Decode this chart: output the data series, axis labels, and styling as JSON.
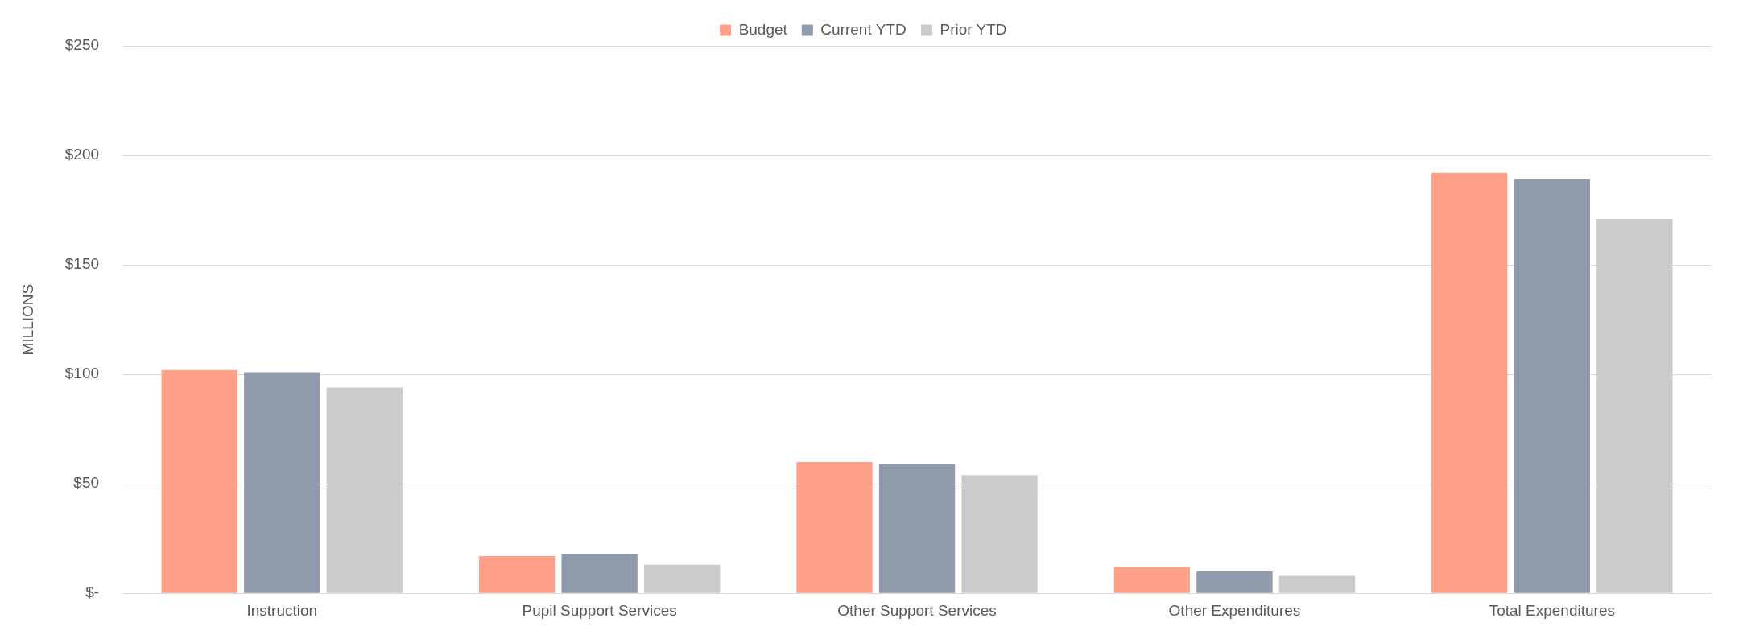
{
  "chart_data": {
    "type": "bar",
    "ylabel": "MILLIONS",
    "categories": [
      "Instruction",
      "Pupil Support Services",
      "Other Support Services",
      "Other Expenditures",
      "Total Expenditures"
    ],
    "series": [
      {
        "name": "Budget",
        "color": "#ffa088",
        "values": [
          102,
          17,
          60,
          12,
          192
        ]
      },
      {
        "name": "Current YTD",
        "color": "#8f9aad",
        "values": [
          101,
          18,
          59,
          10,
          189
        ]
      },
      {
        "name": "Prior YTD",
        "color": "#cbcbcb",
        "values": [
          94,
          13,
          54,
          8,
          171
        ]
      }
    ],
    "ylim": [
      0,
      250
    ],
    "yticks": [
      {
        "value": 0,
        "label": "$-"
      },
      {
        "value": 50,
        "label": "$50"
      },
      {
        "value": 100,
        "label": "$100"
      },
      {
        "value": 150,
        "label": "$150"
      },
      {
        "value": 200,
        "label": "$200"
      },
      {
        "value": 250,
        "label": "$250"
      }
    ],
    "grid": "y",
    "legend": "top"
  }
}
